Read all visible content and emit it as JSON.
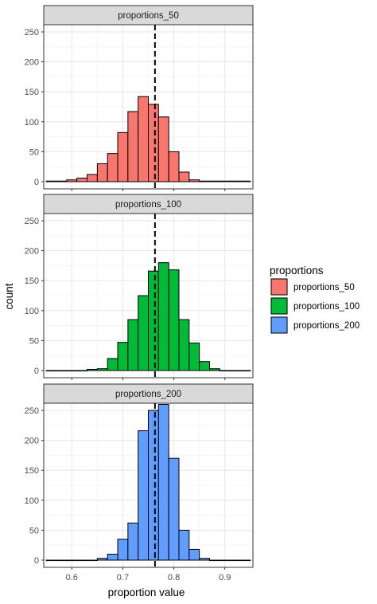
{
  "chart_data": {
    "type": "bar",
    "xlabel": "proportion value",
    "ylabel": "count",
    "x_ticks": [
      0.6,
      0.7,
      0.8,
      0.9
    ],
    "y_ticks": [
      0,
      50,
      100,
      150,
      200,
      250
    ],
    "xlim": [
      0.545,
      0.955
    ],
    "ylim": [
      -12,
      262
    ],
    "bin_width": 0.02,
    "bin_centers": [
      0.56,
      0.58,
      0.6,
      0.62,
      0.64,
      0.66,
      0.68,
      0.7,
      0.72,
      0.74,
      0.76,
      0.78,
      0.8,
      0.82,
      0.84,
      0.86,
      0.88,
      0.9,
      0.92,
      0.94
    ],
    "reference_line": {
      "x": 0.763,
      "style": "dashed"
    },
    "grid": true,
    "legend": {
      "title": "proportions",
      "position": "right",
      "entries": [
        "proportions_50",
        "proportions_100",
        "proportions_200"
      ]
    },
    "panels": [
      {
        "strip_label": "proportions_50",
        "fill": "#F8766D",
        "counts": [
          1,
          1,
          3,
          6,
          12,
          30,
          47,
          82,
          117,
          142,
          129,
          108,
          50,
          16,
          3,
          1,
          1,
          1,
          1,
          1
        ]
      },
      {
        "strip_label": "proportions_100",
        "fill": "#00BA38",
        "counts": [
          0,
          0,
          0,
          0,
          2,
          3,
          20,
          47,
          85,
          125,
          166,
          180,
          168,
          85,
          46,
          15,
          3,
          0,
          0,
          0
        ]
      },
      {
        "strip_label": "proportions_200",
        "fill": "#619CFF",
        "counts": [
          0,
          0,
          0,
          0,
          0,
          3,
          10,
          35,
          62,
          216,
          250,
          260,
          170,
          50,
          18,
          3,
          0,
          0,
          0,
          0
        ]
      }
    ]
  }
}
